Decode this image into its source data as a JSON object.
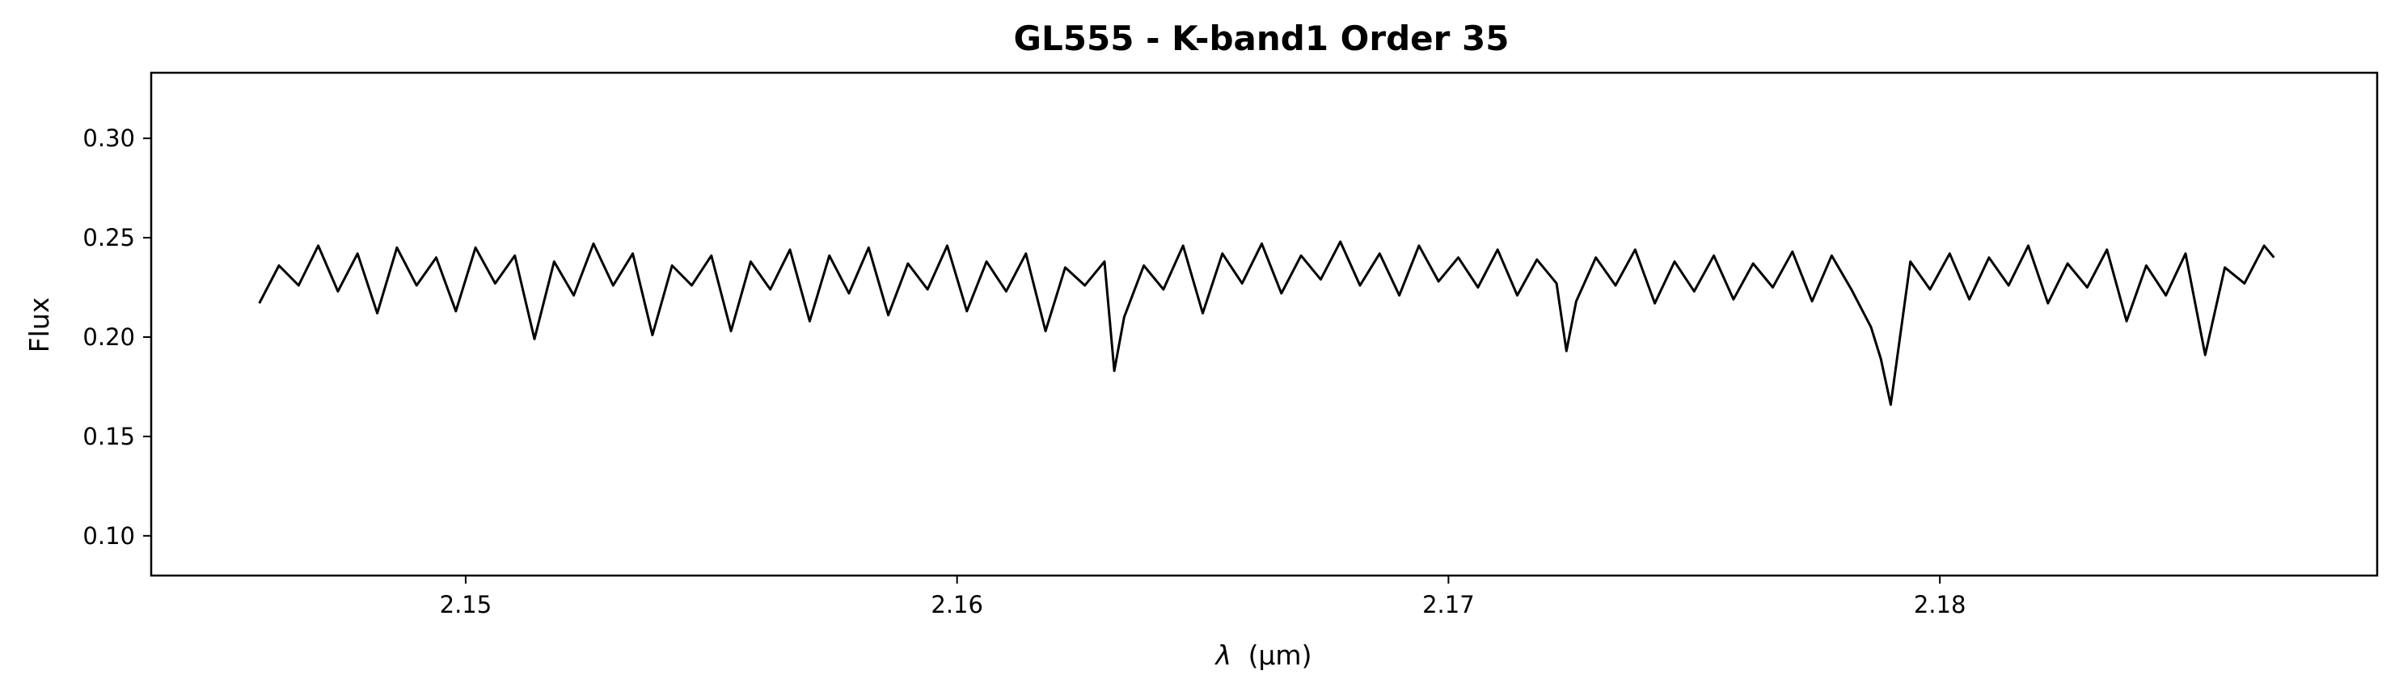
{
  "chart_data": {
    "type": "line",
    "title": "GL555 - K-band1 Order 35",
    "xlabel_symbol": "λ",
    "xlabel_unit": "(μm)",
    "ylabel": "Flux",
    "xlim": [
      2.1436,
      2.1889
    ],
    "ylim": [
      0.08,
      0.333
    ],
    "x_ticks": [
      2.15,
      2.16,
      2.17,
      2.18
    ],
    "x_tick_labels": [
      "2.15",
      "2.16",
      "2.17",
      "2.18"
    ],
    "y_ticks": [
      0.1,
      0.15,
      0.2,
      0.25,
      0.3
    ],
    "y_tick_labels": [
      "0.10",
      "0.15",
      "0.20",
      "0.25",
      "0.30"
    ],
    "grid": false,
    "line_color": "#000000",
    "series": [
      {
        "x": [
          2.1458,
          2.1462,
          2.1466,
          2.147,
          2.1474,
          2.1478,
          2.1482,
          2.1486,
          2.149,
          2.1494,
          2.1498,
          2.1502,
          2.1506,
          2.151,
          2.1514,
          2.1518,
          2.1522,
          2.1526,
          2.153,
          2.1534,
          2.1538,
          2.1542,
          2.1546,
          2.155,
          2.1554,
          2.1558,
          2.1562,
          2.1566,
          2.157,
          2.1574,
          2.1578,
          2.1582,
          2.1586,
          2.159,
          2.1594,
          2.1598,
          2.1602,
          2.1606,
          2.161,
          2.1614,
          2.1618,
          2.1622,
          2.1626,
          2.163,
          2.1632,
          2.1634,
          2.1638,
          2.1642,
          2.1646,
          2.165,
          2.1654,
          2.1658,
          2.1662,
          2.1666,
          2.167,
          2.1674,
          2.1678,
          2.1682,
          2.1686,
          2.169,
          2.1694,
          2.1698,
          2.1702,
          2.1706,
          2.171,
          2.1714,
          2.1718,
          2.1722,
          2.1724,
          2.1726,
          2.173,
          2.1734,
          2.1738,
          2.1742,
          2.1746,
          2.175,
          2.1754,
          2.1758,
          2.1762,
          2.1766,
          2.177,
          2.1774,
          2.1778,
          2.1782,
          2.1786,
          2.1788,
          2.179,
          2.1794,
          2.1798,
          2.1802,
          2.1806,
          2.181,
          2.1814,
          2.1818,
          2.1822,
          2.1826,
          2.183,
          2.1834,
          2.1838,
          2.1842,
          2.1846,
          2.185,
          2.1854,
          2.1858,
          2.1862,
          2.1866,
          2.1868
        ],
        "y": [
          0.217,
          0.236,
          0.226,
          0.246,
          0.223,
          0.242,
          0.212,
          0.245,
          0.226,
          0.24,
          0.213,
          0.245,
          0.227,
          0.241,
          0.199,
          0.238,
          0.221,
          0.247,
          0.226,
          0.242,
          0.201,
          0.236,
          0.226,
          0.241,
          0.203,
          0.238,
          0.224,
          0.244,
          0.208,
          0.241,
          0.222,
          0.245,
          0.211,
          0.237,
          0.224,
          0.246,
          0.213,
          0.238,
          0.223,
          0.242,
          0.203,
          0.235,
          0.226,
          0.238,
          0.183,
          0.21,
          0.236,
          0.224,
          0.246,
          0.212,
          0.242,
          0.227,
          0.247,
          0.222,
          0.241,
          0.229,
          0.248,
          0.226,
          0.242,
          0.221,
          0.246,
          0.228,
          0.24,
          0.225,
          0.244,
          0.221,
          0.239,
          0.227,
          0.193,
          0.218,
          0.24,
          0.226,
          0.244,
          0.217,
          0.238,
          0.223,
          0.241,
          0.219,
          0.237,
          0.225,
          0.243,
          0.218,
          0.241,
          0.224,
          0.205,
          0.189,
          0.166,
          0.238,
          0.224,
          0.242,
          0.219,
          0.24,
          0.226,
          0.246,
          0.217,
          0.237,
          0.225,
          0.244,
          0.208,
          0.236,
          0.221,
          0.242,
          0.191,
          0.235,
          0.227,
          0.246,
          0.24
        ]
      }
    ]
  }
}
